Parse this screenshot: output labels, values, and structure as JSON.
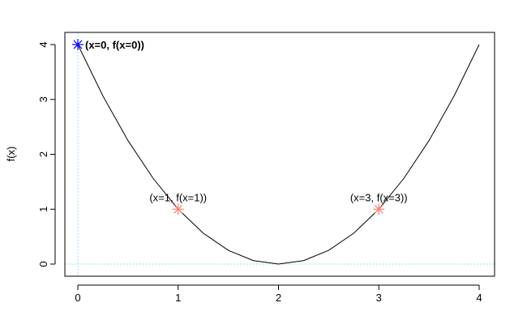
{
  "chart_data": {
    "type": "line",
    "title": "",
    "xlabel": "",
    "ylabel": "f(x)",
    "xlim": [
      0,
      4
    ],
    "ylim": [
      0,
      4
    ],
    "x_ticks": [
      0,
      1,
      2,
      3,
      4
    ],
    "y_ticks": [
      0,
      1,
      2,
      3,
      4
    ],
    "grid": false,
    "curve": {
      "x": [
        0,
        0.25,
        0.5,
        0.75,
        1,
        1.25,
        1.5,
        1.75,
        2,
        2.25,
        2.5,
        2.75,
        3,
        3.25,
        3.5,
        3.75,
        4
      ],
      "y": [
        4,
        3.0625,
        2.25,
        1.5625,
        1,
        0.5625,
        0.25,
        0.0625,
        0,
        0.0625,
        0.25,
        0.5625,
        1,
        1.5625,
        2.25,
        3.0625,
        4
      ],
      "color": "#000000"
    },
    "reference_lines": [
      {
        "orientation": "vertical",
        "value": 0,
        "color": "#87ceeb",
        "style": "dotted"
      },
      {
        "orientation": "horizontal",
        "value": 0,
        "color": "#87ceeb",
        "style": "dotted"
      }
    ],
    "points": [
      {
        "x": 0,
        "y": 4,
        "label": "(x=0, f(x=0))",
        "color": "#0000ff",
        "bold": true,
        "label_position": "right"
      },
      {
        "x": 1,
        "y": 1,
        "label": "(x=1, f(x=1))",
        "color": "#fa8072",
        "bold": false,
        "label_position": "top"
      },
      {
        "x": 3,
        "y": 1,
        "label": "(x=3, f(x=3))",
        "color": "#fa8072",
        "bold": false,
        "label_position": "top"
      }
    ]
  }
}
